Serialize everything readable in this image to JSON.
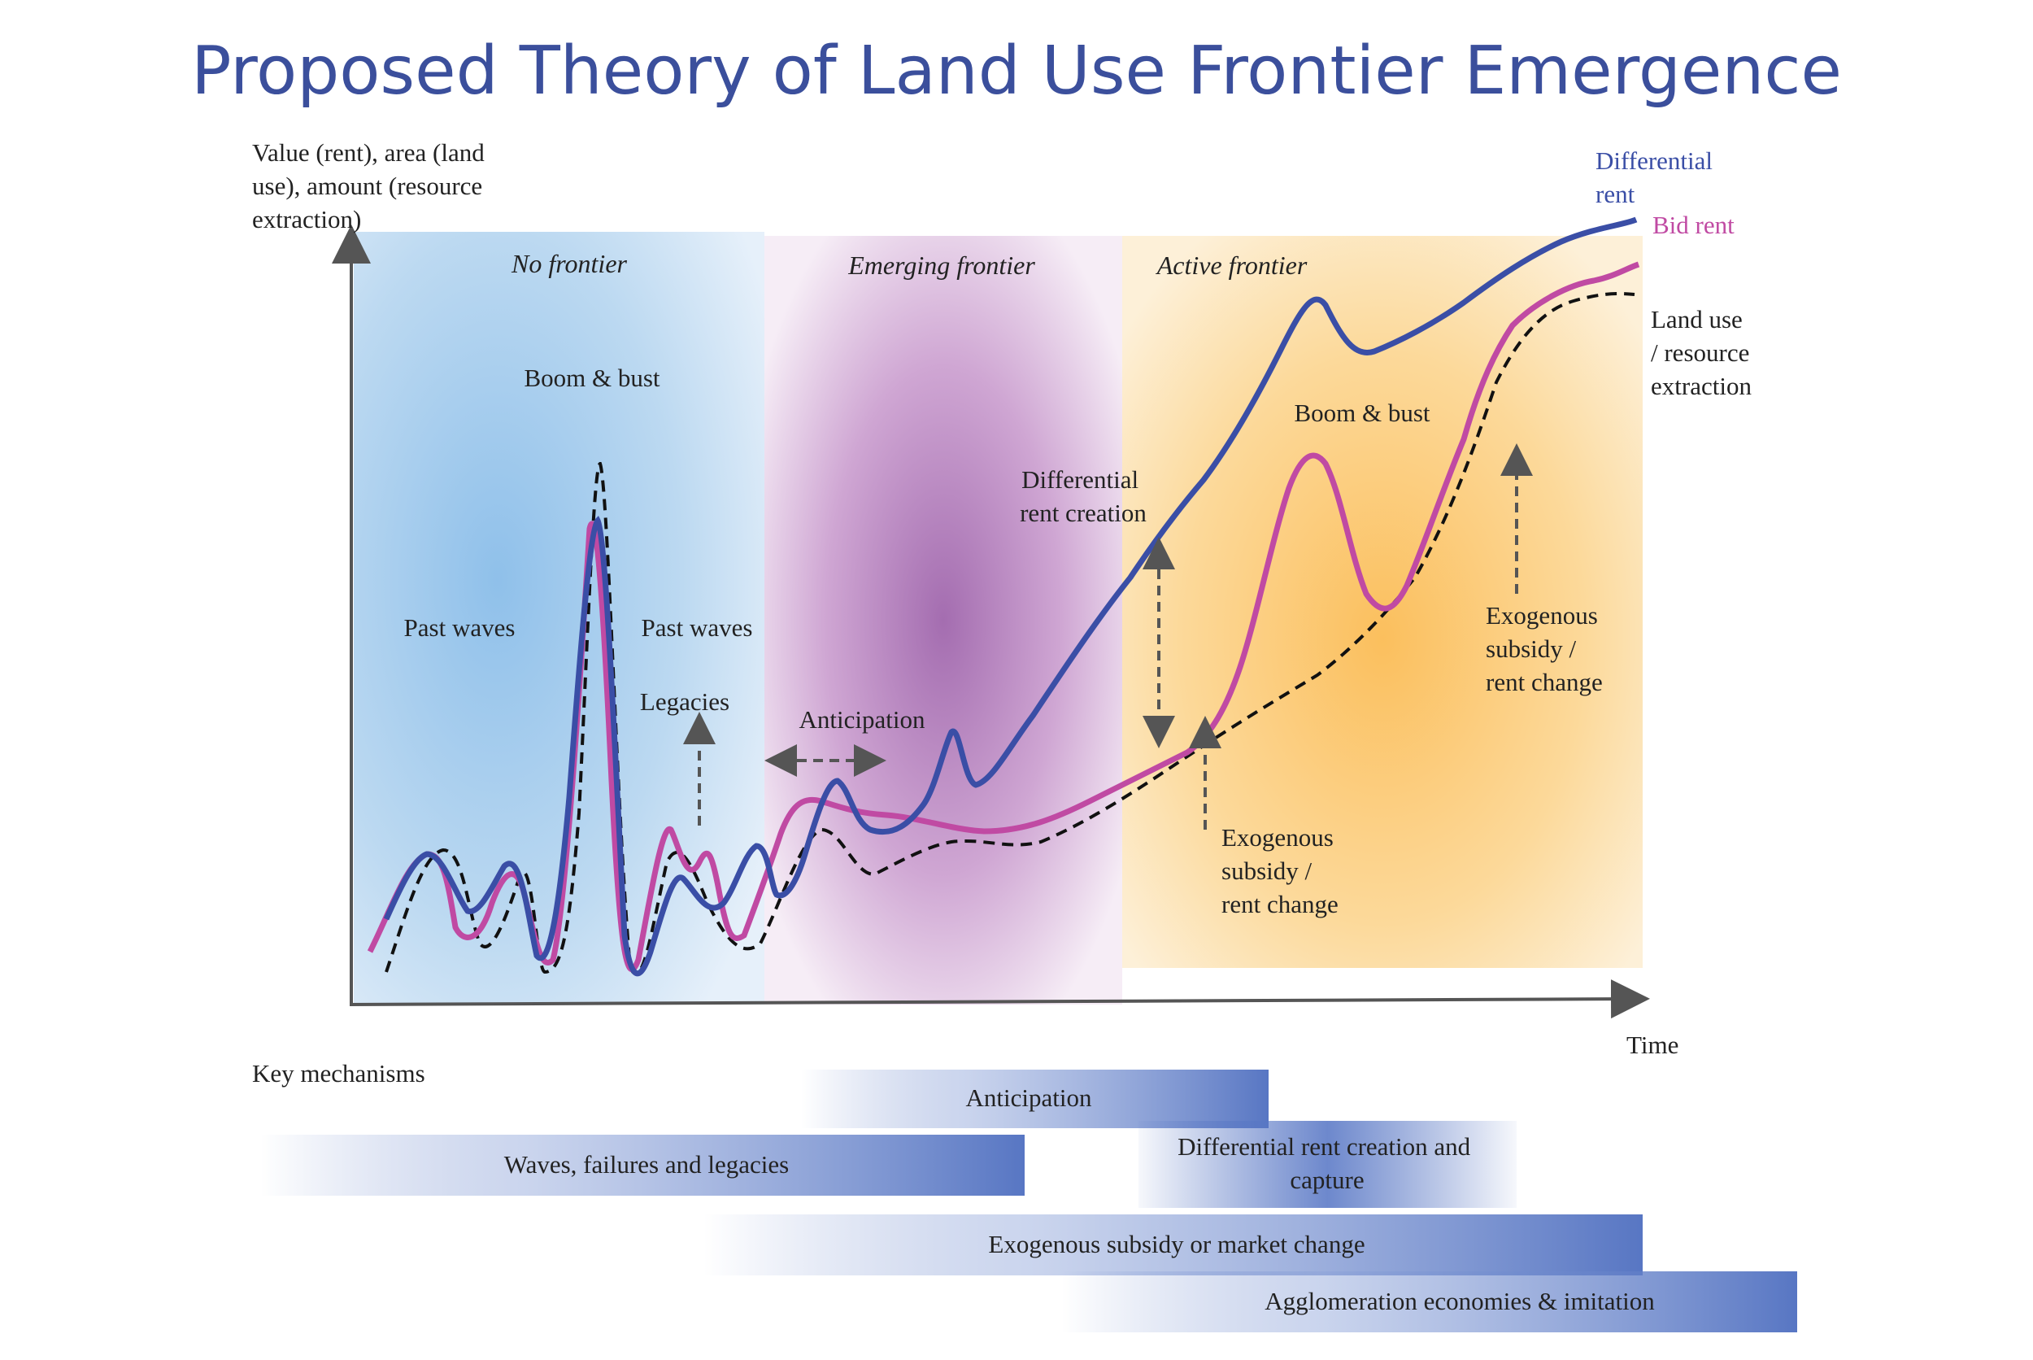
{
  "title": "Proposed Theory of Land Use Frontier Emergence",
  "y_axis_label": [
    "Value (rent), area (land",
    "use), amount (resource",
    "extraction)"
  ],
  "x_axis_label": "Time",
  "phases": {
    "no_frontier": "No frontier",
    "emerging_frontier": "Emerging frontier",
    "active_frontier": "Active frontier"
  },
  "colors": {
    "title": "#3b4f9c",
    "differential_rent": "#3a4ea6",
    "bid_rent": "#c04aa3",
    "land_use": "#111111",
    "no_frontier_bg": "#a9cdeb",
    "emerging_bg": "#a46db0",
    "active_bg": "#fbbf5d",
    "mechanism_bar": "#4f6fc0"
  },
  "legend": {
    "differential_rent": [
      "Differential",
      "rent"
    ],
    "bid_rent": "Bid rent",
    "land_use": [
      "Land use",
      "/ resource",
      "extraction"
    ]
  },
  "annotations": {
    "boom_bust_1": "Boom & bust",
    "past_waves_1": "Past waves",
    "past_waves_2": "Past waves",
    "legacies": "Legacies",
    "anticipation": "Anticipation",
    "differential_rent_creation": [
      "Differential",
      "rent creation"
    ],
    "boom_bust_2": "Boom & bust",
    "exogenous_1": [
      "Exogenous",
      "subsidy /",
      "rent change"
    ],
    "exogenous_2": [
      "Exogenous",
      "subsidy /",
      "rent change"
    ]
  },
  "key_mechanisms": {
    "heading": "Key mechanisms",
    "anticipation": "Anticipation",
    "waves": "Waves, failures and legacies",
    "differential": [
      "Differential rent creation and",
      "capture"
    ],
    "exogenous": "Exogenous subsidy or market change",
    "agglomeration": "Agglomeration economies & imitation"
  }
}
